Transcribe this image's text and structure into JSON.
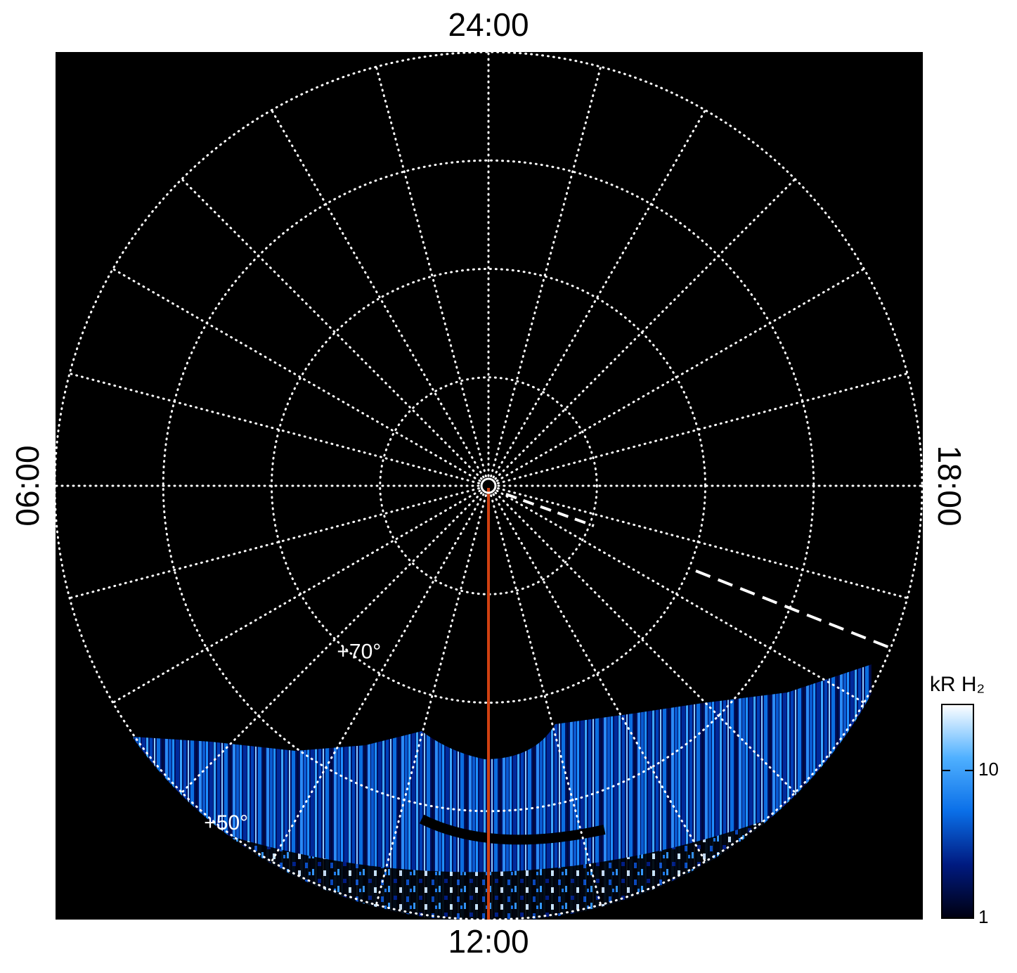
{
  "chart_data": {
    "type": "polar",
    "thetalim": [
      0,
      24
    ],
    "theta_ticks": [
      {
        "value": 24,
        "label": "24:00"
      },
      {
        "value": 6,
        "label": "06:00"
      },
      {
        "value": 12,
        "label": "12:00"
      },
      {
        "value": 18,
        "label": "18:00"
      }
    ],
    "rlim": [
      90,
      50
    ],
    "rticks": [
      {
        "value": 80,
        "label": null
      },
      {
        "value": 70,
        "label": "+70°"
      },
      {
        "value": 60,
        "label": null
      },
      {
        "value": 50,
        "label": "+50°"
      }
    ],
    "grid": true,
    "colorbar": {
      "label": "kR H₂",
      "log": true,
      "ylim": [
        1,
        28
      ],
      "yticks": [
        1,
        10
      ],
      "colors": [
        "#000010",
        "#001a80",
        "#0a6fe8",
        "#4fb0ff",
        "#ffffff"
      ]
    }
  }
}
